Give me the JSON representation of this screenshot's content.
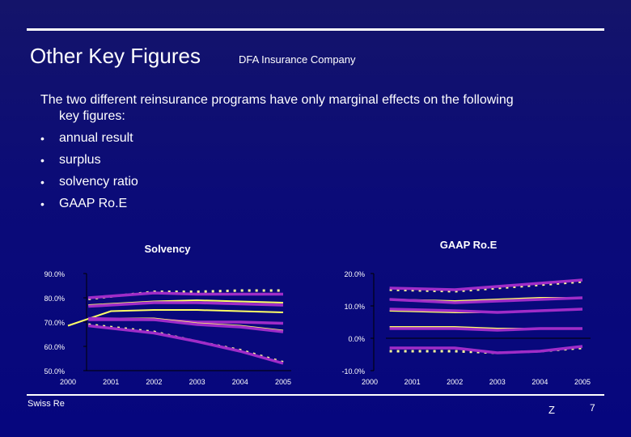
{
  "header": {
    "title": "Other Key Figures",
    "company": "DFA Insurance Company"
  },
  "intro": {
    "line1": "The two different reinsurance programs have only marginal effects on the following",
    "line2": "key figures:"
  },
  "bullets": [
    "annual result",
    "surplus",
    "solvency ratio",
    "GAAP Ro.E"
  ],
  "footer": {
    "left": "Swiss Re",
    "mark": "Z",
    "page": "7"
  },
  "colors": {
    "magenta": "#a02cc8",
    "yellow": "#ffff66",
    "light_yellow": "#ffff99"
  },
  "chart_data": [
    {
      "type": "line",
      "title": "Solvency",
      "categories": [
        "2000",
        "2001",
        "2002",
        "2003",
        "2004",
        "2005"
      ],
      "ylim": [
        50,
        90
      ],
      "yticks": [
        90,
        80,
        70,
        60,
        50
      ],
      "ytick_labels": [
        "90.0%",
        "80.0%",
        "70.0%",
        "60.0%",
        "50.0%"
      ],
      "series": [
        {
          "name": "upper dotted",
          "style": "dotted-yellow",
          "values": [
            null,
            79.5,
            82.5,
            82.5,
            83.0,
            83.0
          ]
        },
        {
          "name": "upper magenta",
          "style": "magenta",
          "values": [
            null,
            80.0,
            82.0,
            81.5,
            81.5,
            81.5
          ]
        },
        {
          "name": "upper yellow",
          "style": "yellow",
          "values": [
            null,
            77.0,
            78.5,
            79.0,
            78.5,
            78.0
          ]
        },
        {
          "name": "mid magenta",
          "style": "magenta",
          "values": [
            null,
            76.5,
            78.0,
            78.0,
            77.5,
            77.0
          ]
        },
        {
          "name": "base yellow",
          "style": "yellow",
          "values": [
            68.5,
            74.5,
            75.0,
            75.0,
            74.5,
            74.0
          ]
        },
        {
          "name": "lower magenta",
          "style": "magenta",
          "values": [
            null,
            71.0,
            71.0,
            70.0,
            70.0,
            69.5
          ]
        },
        {
          "name": "lower yellow",
          "style": "yellow",
          "values": [
            null,
            71.5,
            71.5,
            69.5,
            68.5,
            66.5
          ]
        },
        {
          "name": "lower magenta 2",
          "style": "magenta",
          "values": [
            null,
            71.5,
            71.0,
            69.0,
            68.0,
            66.0
          ]
        },
        {
          "name": "bottom dotted",
          "style": "dotted-yellow",
          "values": [
            null,
            69.0,
            66.0,
            62.0,
            58.5,
            53.5
          ]
        },
        {
          "name": "bottom magenta",
          "style": "magenta",
          "values": [
            null,
            68.5,
            65.5,
            62.0,
            58.0,
            53.0
          ]
        }
      ]
    },
    {
      "type": "line",
      "title": "GAAP Ro.E",
      "categories": [
        "2000",
        "2001",
        "2002",
        "2003",
        "2004",
        "2005"
      ],
      "ylim": [
        -10,
        20
      ],
      "yticks": [
        20,
        10,
        0,
        -10
      ],
      "ytick_labels": [
        "20.0%",
        "10.0%",
        "0.0%",
        "-10.0%"
      ],
      "series": [
        {
          "name": "upper dotted",
          "style": "dotted-yellow",
          "values": [
            null,
            15.0,
            14.5,
            15.5,
            16.5,
            17.5
          ]
        },
        {
          "name": "upper magenta",
          "style": "magenta",
          "values": [
            null,
            15.5,
            15.0,
            16.0,
            17.0,
            18.0
          ]
        },
        {
          "name": "upper yellow",
          "style": "yellow",
          "values": [
            null,
            12.0,
            11.5,
            12.0,
            12.5,
            12.5
          ]
        },
        {
          "name": "upper magenta 2",
          "style": "magenta",
          "values": [
            null,
            12.0,
            11.0,
            11.5,
            12.0,
            12.5
          ]
        },
        {
          "name": "mid yellow",
          "style": "yellow",
          "values": [
            null,
            8.5,
            8.0,
            8.0,
            8.5,
            9.0
          ]
        },
        {
          "name": "mid magenta",
          "style": "magenta",
          "values": [
            null,
            9.0,
            8.5,
            8.0,
            8.5,
            9.0
          ]
        },
        {
          "name": "low yellow",
          "style": "yellow",
          "values": [
            null,
            3.5,
            3.5,
            3.0,
            3.0,
            3.0
          ]
        },
        {
          "name": "low magenta",
          "style": "magenta",
          "values": [
            null,
            3.0,
            3.0,
            2.5,
            3.0,
            3.0
          ]
        },
        {
          "name": "bottom dotted",
          "style": "dotted-yellow",
          "values": [
            null,
            -4.0,
            -4.0,
            -4.5,
            -4.0,
            -3.0
          ]
        },
        {
          "name": "bottom magenta",
          "style": "magenta",
          "values": [
            null,
            -3.0,
            -3.0,
            -4.5,
            -4.0,
            -2.5
          ]
        }
      ]
    }
  ]
}
